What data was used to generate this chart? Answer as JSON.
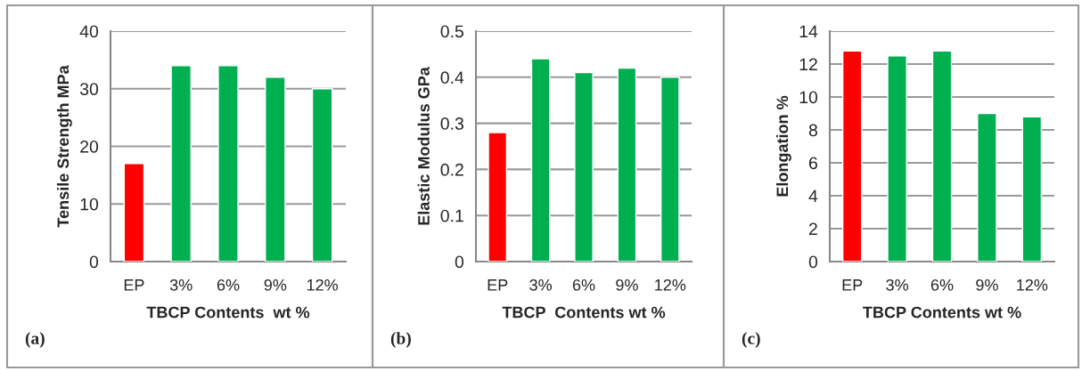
{
  "chart_data": [
    {
      "type": "bar",
      "categories": [
        "EP",
        "3%",
        "6%",
        "9%",
        "12%"
      ],
      "values": [
        17,
        34,
        34,
        32,
        30
      ],
      "colors": [
        "#ff0000",
        "#00b050",
        "#00b050",
        "#00b050",
        "#00b050"
      ],
      "ylabel": "Tensile Strength MPa",
      "xlabel": "TBCP Contents  wt %",
      "ylim": [
        0,
        40
      ],
      "yticks": [
        0,
        10,
        20,
        30,
        40
      ],
      "grid": "y",
      "annotations": [
        "(a)"
      ]
    },
    {
      "type": "bar",
      "categories": [
        "EP",
        "3%",
        "6%",
        "9%",
        "12%"
      ],
      "values": [
        0.28,
        0.44,
        0.41,
        0.42,
        0.4
      ],
      "colors": [
        "#ff0000",
        "#00b050",
        "#00b050",
        "#00b050",
        "#00b050"
      ],
      "ylabel": "Elastic Modulus GPa",
      "xlabel": "TBCP  Contents wt %",
      "ylim": [
        0,
        0.5
      ],
      "yticks": [
        0,
        0.1,
        0.2,
        0.3,
        0.4,
        0.5
      ],
      "grid": "y",
      "annotations": [
        "(b)"
      ]
    },
    {
      "type": "bar",
      "categories": [
        "EP",
        "3%",
        "6%",
        "9%",
        "12%"
      ],
      "values": [
        12.8,
        12.5,
        12.8,
        9.0,
        8.8
      ],
      "colors": [
        "#ff0000",
        "#00b050",
        "#00b050",
        "#00b050",
        "#00b050"
      ],
      "ylabel": "Elongation %",
      "xlabel": "TBCP Contents wt %",
      "ylim": [
        0,
        14
      ],
      "yticks": [
        0,
        2,
        4,
        6,
        8,
        10,
        12,
        14
      ],
      "grid": "y",
      "annotations": [
        "(c)"
      ]
    }
  ]
}
